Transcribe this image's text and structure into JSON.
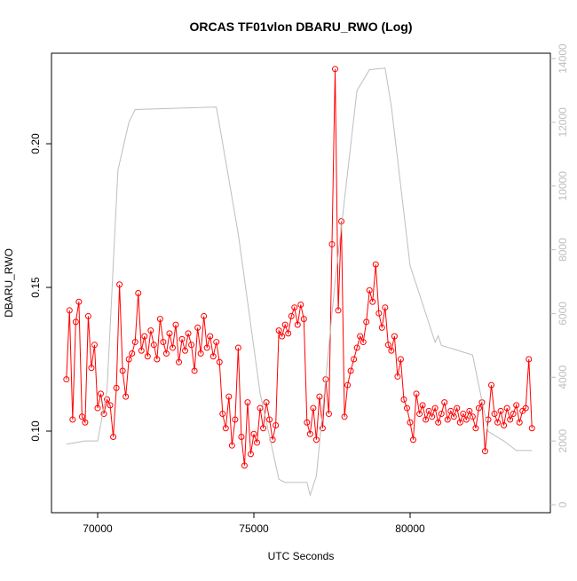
{
  "chart_data": {
    "type": "line",
    "title": "ORCAS TF01vlon DBARU_RWO (Log)",
    "xlabel": "UTC Seconds",
    "ylabel": "DBARU_RWO",
    "xlim": [
      68523,
      84489
    ],
    "xticks": [
      70000,
      75000,
      80000
    ],
    "ylim": [
      0.0716,
      0.2315
    ],
    "yticks": [
      {
        "value": 0.1,
        "label": "0.10"
      },
      0.15,
      {
        "value": 0.2,
        "label": "0.20"
      }
    ],
    "y2lim": [
      -250,
      14167
    ],
    "y2ticks": [
      0,
      2000,
      4000,
      6000,
      8000,
      10000,
      12000,
      14000
    ],
    "series": [
      {
        "color": "#ff0000",
        "markers": true,
        "x": [
          69000,
          69100,
          69200,
          69300,
          69400,
          69500,
          69600,
          69700,
          69800,
          69900,
          70000,
          70100,
          70200,
          70300,
          70400,
          70500,
          70600,
          70700,
          70800,
          70900,
          71000,
          71100,
          71200,
          71300,
          71400,
          71500,
          71600,
          71700,
          71800,
          71900,
          72000,
          72100,
          72200,
          72300,
          72400,
          72500,
          72600,
          72700,
          72800,
          72900,
          73000,
          73100,
          73200,
          73300,
          73400,
          73500,
          73600,
          73700,
          73800,
          73900,
          74000,
          74100,
          74200,
          74300,
          74400,
          74500,
          74600,
          74700,
          74800,
          74900,
          75000,
          75100,
          75200,
          75300,
          75400,
          75500,
          75600,
          75700,
          75800,
          75900,
          76000,
          76100,
          76200,
          76300,
          76400,
          76500,
          76600,
          76700,
          76800,
          76900,
          77000,
          77100,
          77200,
          77300,
          77400,
          77500,
          77600,
          77700,
          77800,
          77900,
          78000,
          78100,
          78200,
          78300,
          78400,
          78500,
          78600,
          78700,
          78800,
          78900,
          79000,
          79100,
          79200,
          79300,
          79400,
          79500,
          79600,
          79700,
          79800,
          79900,
          80000,
          80100,
          80200,
          80300,
          80400,
          80500,
          80600,
          80700,
          80800,
          80900,
          81000,
          81100,
          81200,
          81300,
          81400,
          81500,
          81600,
          81700,
          81800,
          81900,
          82000,
          82100,
          82200,
          82300,
          82400,
          82500,
          82600,
          82700,
          82800,
          82900,
          83000,
          83100,
          83200,
          83300,
          83400,
          83500,
          83600,
          83700,
          83800,
          83900
        ],
        "values": [
          0.118,
          0.142,
          0.104,
          0.138,
          0.145,
          0.105,
          0.103,
          0.14,
          0.122,
          0.13,
          0.108,
          0.113,
          0.106,
          0.111,
          0.109,
          0.098,
          0.115,
          0.151,
          0.121,
          0.112,
          0.125,
          0.127,
          0.131,
          0.148,
          0.128,
          0.133,
          0.126,
          0.135,
          0.13,
          0.125,
          0.139,
          0.131,
          0.127,
          0.134,
          0.129,
          0.137,
          0.124,
          0.132,
          0.128,
          0.134,
          0.13,
          0.121,
          0.136,
          0.127,
          0.14,
          0.129,
          0.133,
          0.126,
          0.131,
          0.124,
          0.106,
          0.101,
          0.112,
          0.095,
          0.104,
          0.129,
          0.098,
          0.088,
          0.11,
          0.092,
          0.099,
          0.096,
          0.108,
          0.101,
          0.11,
          0.104,
          0.097,
          0.102,
          0.135,
          0.133,
          0.137,
          0.134,
          0.14,
          0.143,
          0.137,
          0.144,
          0.139,
          0.103,
          0.099,
          0.108,
          0.097,
          0.112,
          0.101,
          0.118,
          0.106,
          0.165,
          0.226,
          0.142,
          0.173,
          0.105,
          0.116,
          0.121,
          0.125,
          0.129,
          0.133,
          0.131,
          0.138,
          0.149,
          0.145,
          0.158,
          0.141,
          0.136,
          0.143,
          0.13,
          0.128,
          0.133,
          0.119,
          0.125,
          0.111,
          0.108,
          0.103,
          0.097,
          0.113,
          0.106,
          0.109,
          0.104,
          0.107,
          0.105,
          0.108,
          0.103,
          0.106,
          0.11,
          0.104,
          0.107,
          0.105,
          0.108,
          0.103,
          0.106,
          0.104,
          0.107,
          0.105,
          0.101,
          0.108,
          0.11,
          0.093,
          0.104,
          0.116,
          0.106,
          0.103,
          0.107,
          0.102,
          0.108,
          0.104,
          0.106,
          0.109,
          0.103,
          0.107,
          0.108,
          0.125,
          0.101
        ]
      },
      {
        "color": "#bebebe",
        "axis": "y2",
        "markers": false,
        "x": [
          69000,
          69600,
          70000,
          70300,
          70650,
          71000,
          71200,
          73800,
          74500,
          75200,
          75800,
          76000,
          76700,
          76800,
          77000,
          77600,
          78300,
          78700,
          79200,
          79400,
          80000,
          80800,
          80900,
          81000,
          82000,
          82500,
          83000,
          83400,
          83900
        ],
        "values": [
          1900,
          2000,
          2000,
          3600,
          10500,
          12000,
          12400,
          12480,
          8500,
          3500,
          800,
          700,
          700,
          300,
          900,
          7000,
          13000,
          13650,
          13700,
          12500,
          7500,
          5100,
          5300,
          5000,
          4700,
          2300,
          2000,
          1700,
          1700
        ]
      }
    ]
  }
}
